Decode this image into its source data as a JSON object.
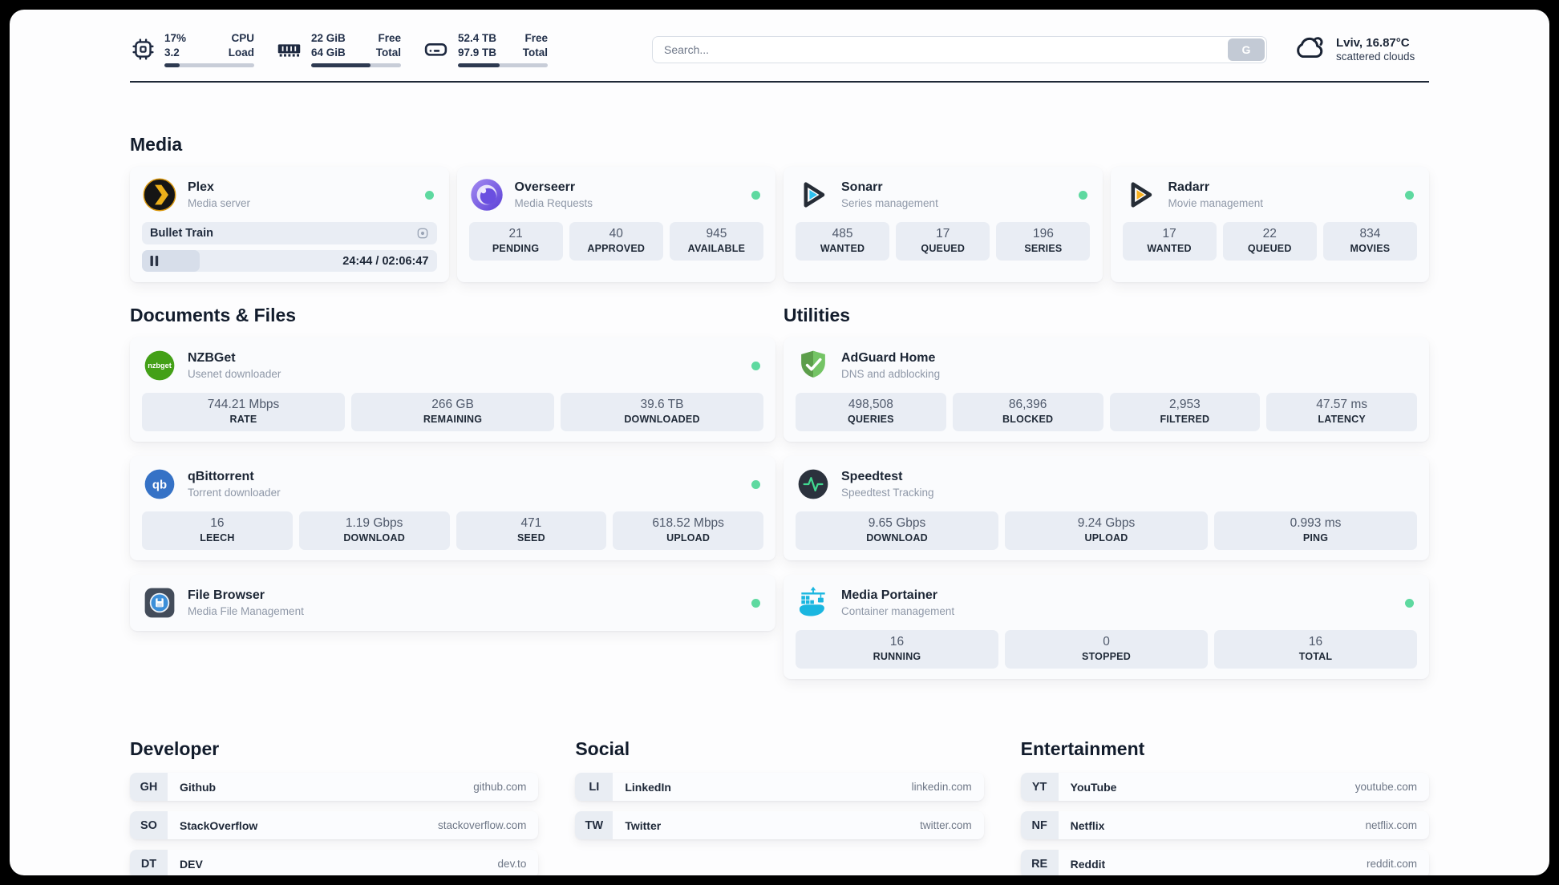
{
  "header": {
    "widgets": [
      {
        "name": "cpu",
        "values": [
          "17%",
          "3.2"
        ],
        "labels": [
          "CPU",
          "Load"
        ],
        "progress_pct": 17
      },
      {
        "name": "memory",
        "values": [
          "22 GiB",
          "64 GiB"
        ],
        "labels": [
          "Free",
          "Total"
        ],
        "progress_pct": 66
      },
      {
        "name": "disk",
        "values": [
          "52.4 TB",
          "97.9 TB"
        ],
        "labels": [
          "Free",
          "Total"
        ],
        "progress_pct": 46
      }
    ],
    "search": {
      "placeholder": "Search...",
      "button_label": "G"
    },
    "weather": {
      "location_temp": "Lviv, 16.87°C",
      "condition": "scattered clouds"
    }
  },
  "sections": {
    "media": {
      "heading": "Media",
      "plex": {
        "title": "Plex",
        "subtitle": "Media server",
        "now_playing": "Bullet Train",
        "time_display": "24:44 / 02:06:47",
        "progress_pct": 19.5
      },
      "overseerr": {
        "title": "Overseerr",
        "subtitle": "Media Requests",
        "stats": [
          {
            "value": "21",
            "label": "PENDING"
          },
          {
            "value": "40",
            "label": "APPROVED"
          },
          {
            "value": "945",
            "label": "AVAILABLE"
          }
        ]
      },
      "sonarr": {
        "title": "Sonarr",
        "subtitle": "Series management",
        "stats": [
          {
            "value": "485",
            "label": "WANTED"
          },
          {
            "value": "17",
            "label": "QUEUED"
          },
          {
            "value": "196",
            "label": "SERIES"
          }
        ]
      },
      "radarr": {
        "title": "Radarr",
        "subtitle": "Movie management",
        "stats": [
          {
            "value": "17",
            "label": "WANTED"
          },
          {
            "value": "22",
            "label": "QUEUED"
          },
          {
            "value": "834",
            "label": "MOVIES"
          }
        ]
      }
    },
    "documents": {
      "heading": "Documents & Files",
      "nzbget": {
        "title": "NZBGet",
        "subtitle": "Usenet downloader",
        "stats": [
          {
            "value": "744.21 Mbps",
            "label": "RATE"
          },
          {
            "value": "266 GB",
            "label": "REMAINING"
          },
          {
            "value": "39.6 TB",
            "label": "DOWNLOADED"
          }
        ]
      },
      "qbittorrent": {
        "title": "qBittorrent",
        "subtitle": "Torrent downloader",
        "stats": [
          {
            "value": "16",
            "label": "LEECH"
          },
          {
            "value": "1.19 Gbps",
            "label": "DOWNLOAD"
          },
          {
            "value": "471",
            "label": "SEED"
          },
          {
            "value": "618.52 Mbps",
            "label": "UPLOAD"
          }
        ]
      },
      "filebrowser": {
        "title": "File Browser",
        "subtitle": "Media File Management"
      }
    },
    "utilities": {
      "heading": "Utilities",
      "adguard": {
        "title": "AdGuard Home",
        "subtitle": "DNS and adblocking",
        "stats": [
          {
            "value": "498,508",
            "label": "QUERIES"
          },
          {
            "value": "86,396",
            "label": "BLOCKED"
          },
          {
            "value": "2,953",
            "label": "FILTERED"
          },
          {
            "value": "47.57 ms",
            "label": "LATENCY"
          }
        ]
      },
      "speedtest": {
        "title": "Speedtest",
        "subtitle": "Speedtest Tracking",
        "stats": [
          {
            "value": "9.65 Gbps",
            "label": "DOWNLOAD"
          },
          {
            "value": "9.24 Gbps",
            "label": "UPLOAD"
          },
          {
            "value": "0.993 ms",
            "label": "PING"
          }
        ]
      },
      "portainer": {
        "title": "Media Portainer",
        "subtitle": "Container management",
        "stats": [
          {
            "value": "16",
            "label": "RUNNING"
          },
          {
            "value": "0",
            "label": "STOPPED"
          },
          {
            "value": "16",
            "label": "TOTAL"
          }
        ]
      }
    }
  },
  "bookmarks": [
    {
      "heading": "Developer",
      "items": [
        {
          "abbr": "GH",
          "name": "Github",
          "url": "github.com"
        },
        {
          "abbr": "SO",
          "name": "StackOverflow",
          "url": "stackoverflow.com"
        },
        {
          "abbr": "DT",
          "name": "DEV",
          "url": "dev.to"
        }
      ]
    },
    {
      "heading": "Social",
      "items": [
        {
          "abbr": "LI",
          "name": "LinkedIn",
          "url": "linkedin.com"
        },
        {
          "abbr": "TW",
          "name": "Twitter",
          "url": "twitter.com"
        }
      ]
    },
    {
      "heading": "Entertainment",
      "items": [
        {
          "abbr": "YT",
          "name": "YouTube",
          "url": "youtube.com"
        },
        {
          "abbr": "NF",
          "name": "Netflix",
          "url": "netflix.com"
        },
        {
          "abbr": "RE",
          "name": "Reddit",
          "url": "reddit.com"
        }
      ]
    }
  ],
  "icons": {
    "nzbget_label": "nzbget",
    "qbittorrent_label": "qb"
  },
  "theme": {
    "status_online": "#5ed9a0",
    "progress_fill": "#2e3a51",
    "progress_track": "#c8cdd8",
    "stat_box": "#e9edf4"
  }
}
